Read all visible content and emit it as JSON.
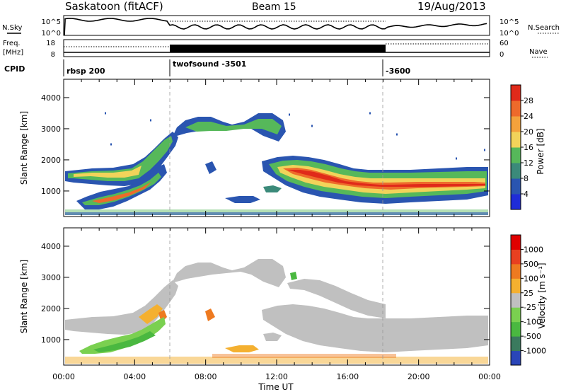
{
  "header": {
    "station": "Saskatoon (fitACF)",
    "beam": "Beam 15",
    "date": "19/Aug/2013"
  },
  "strip": {
    "nsky_label": "N.Sky",
    "nsky_ticks": [
      "10^5",
      "10^0"
    ],
    "nsearch_label": "N.Search",
    "nsearch_ticks": [
      "10^5",
      "10^0"
    ],
    "freq_label_1": "Freq.",
    "freq_label_2": "[MHz]",
    "freq_ticks": [
      "18",
      "8"
    ],
    "nave_label": "Nave",
    "nave_ticks": [
      "60",
      "0"
    ],
    "cpid_label": "CPID",
    "cpid_segments": [
      {
        "label": "rbsp 200",
        "start_hour": 0
      },
      {
        "label": "twofsound -3501",
        "start_hour": 6
      },
      {
        "label": "-3600",
        "start_hour": 18
      }
    ]
  },
  "chart_data": [
    {
      "type": "heatmap",
      "name": "power",
      "ylabel": "Slant Range [km]",
      "ylim": [
        180,
        4590
      ],
      "y_ticks": [
        "1000",
        "2000",
        "3000",
        "4000"
      ],
      "xlim_hours": [
        0,
        24
      ],
      "colorbar_label": "Power [dB]",
      "colorbar_ticks": [
        "4",
        "8",
        "12",
        "16",
        "20",
        "24",
        "28"
      ],
      "colorbar_colors": [
        "#1f2cd8",
        "#2a55b0",
        "#3b8a7a",
        "#56b85a",
        "#f2d35a",
        "#f4a23c",
        "#ee6a2b",
        "#e02a1a"
      ]
    },
    {
      "type": "heatmap",
      "name": "velocity",
      "ylabel": "Slant Range [km]",
      "ylim": [
        180,
        4590
      ],
      "y_ticks": [
        "1000",
        "2000",
        "3000",
        "4000"
      ],
      "xlim_hours": [
        0,
        24
      ],
      "xlabel": "Time UT",
      "x_ticks": [
        "00:00",
        "04:00",
        "08:00",
        "12:00",
        "16:00",
        "20:00",
        "00:00"
      ],
      "colorbar_label": "Velocity [m s⁻¹]",
      "colorbar_ticks": [
        "1000",
        "500",
        "100",
        "25",
        "-25",
        "-100",
        "-500",
        "-1000"
      ],
      "colorbar_colors": [
        "#2a45b8",
        "#3a7a5e",
        "#4ab840",
        "#7ad050",
        "#c0c0c0",
        "#f4b030",
        "#ee7a20",
        "#e84020",
        "#e00000"
      ]
    }
  ]
}
